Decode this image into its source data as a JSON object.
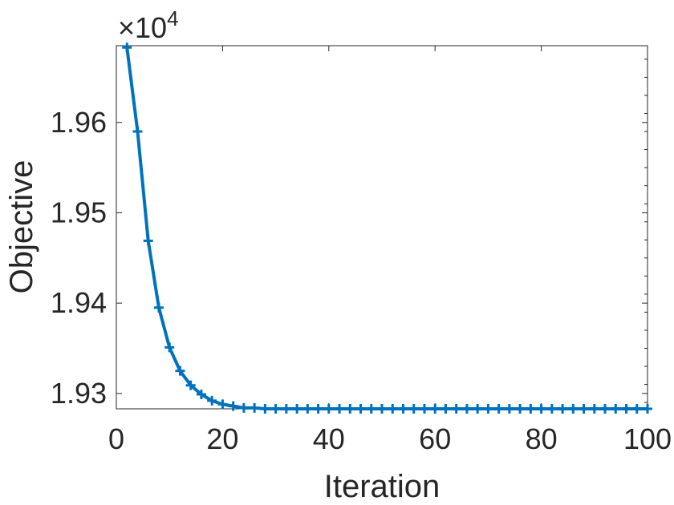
{
  "chart_data": {
    "type": "line",
    "title": "",
    "xlabel": "Iteration",
    "ylabel": "Objective",
    "exponent_label": {
      "base": "×10",
      "power": "4"
    },
    "xlim": [
      0,
      100
    ],
    "ylim": [
      1.9283,
      1.9685
    ],
    "xticks": [
      0,
      20,
      40,
      60,
      80,
      100
    ],
    "yticks": [
      1.93,
      1.94,
      1.95,
      1.96
    ],
    "xtick_labels": [
      "0",
      "20",
      "40",
      "60",
      "80",
      "100"
    ],
    "ytick_labels": [
      "1.93",
      "1.94",
      "1.95",
      "1.96"
    ],
    "grid": false,
    "line_color": "#0072BD",
    "marker": "plus",
    "series": [
      {
        "x": [
          2,
          4,
          6,
          8,
          10,
          12,
          14,
          16,
          18,
          20,
          22,
          24,
          26,
          28,
          30,
          32,
          34,
          36,
          38,
          40,
          42,
          44,
          46,
          48,
          50,
          52,
          54,
          56,
          58,
          60,
          62,
          64,
          66,
          68,
          70,
          72,
          74,
          76,
          78,
          80,
          82,
          84,
          86,
          88,
          90,
          92,
          94,
          96,
          98,
          100
        ],
        "values": [
          1.9683,
          1.959,
          1.9469,
          1.9395,
          1.9351,
          1.9325,
          1.9309,
          1.9299,
          1.9292,
          1.9288,
          1.9286,
          1.9284,
          1.9284,
          1.9283,
          1.9283,
          1.9283,
          1.9283,
          1.9283,
          1.9283,
          1.9283,
          1.9283,
          1.9283,
          1.9283,
          1.9283,
          1.9283,
          1.9283,
          1.9283,
          1.9283,
          1.9283,
          1.9283,
          1.9283,
          1.9283,
          1.9283,
          1.9283,
          1.9283,
          1.9283,
          1.9283,
          1.9283,
          1.9283,
          1.9283,
          1.9283,
          1.9283,
          1.9283,
          1.9283,
          1.9283,
          1.9283,
          1.9283,
          1.9283,
          1.9283,
          1.9283
        ]
      }
    ]
  }
}
